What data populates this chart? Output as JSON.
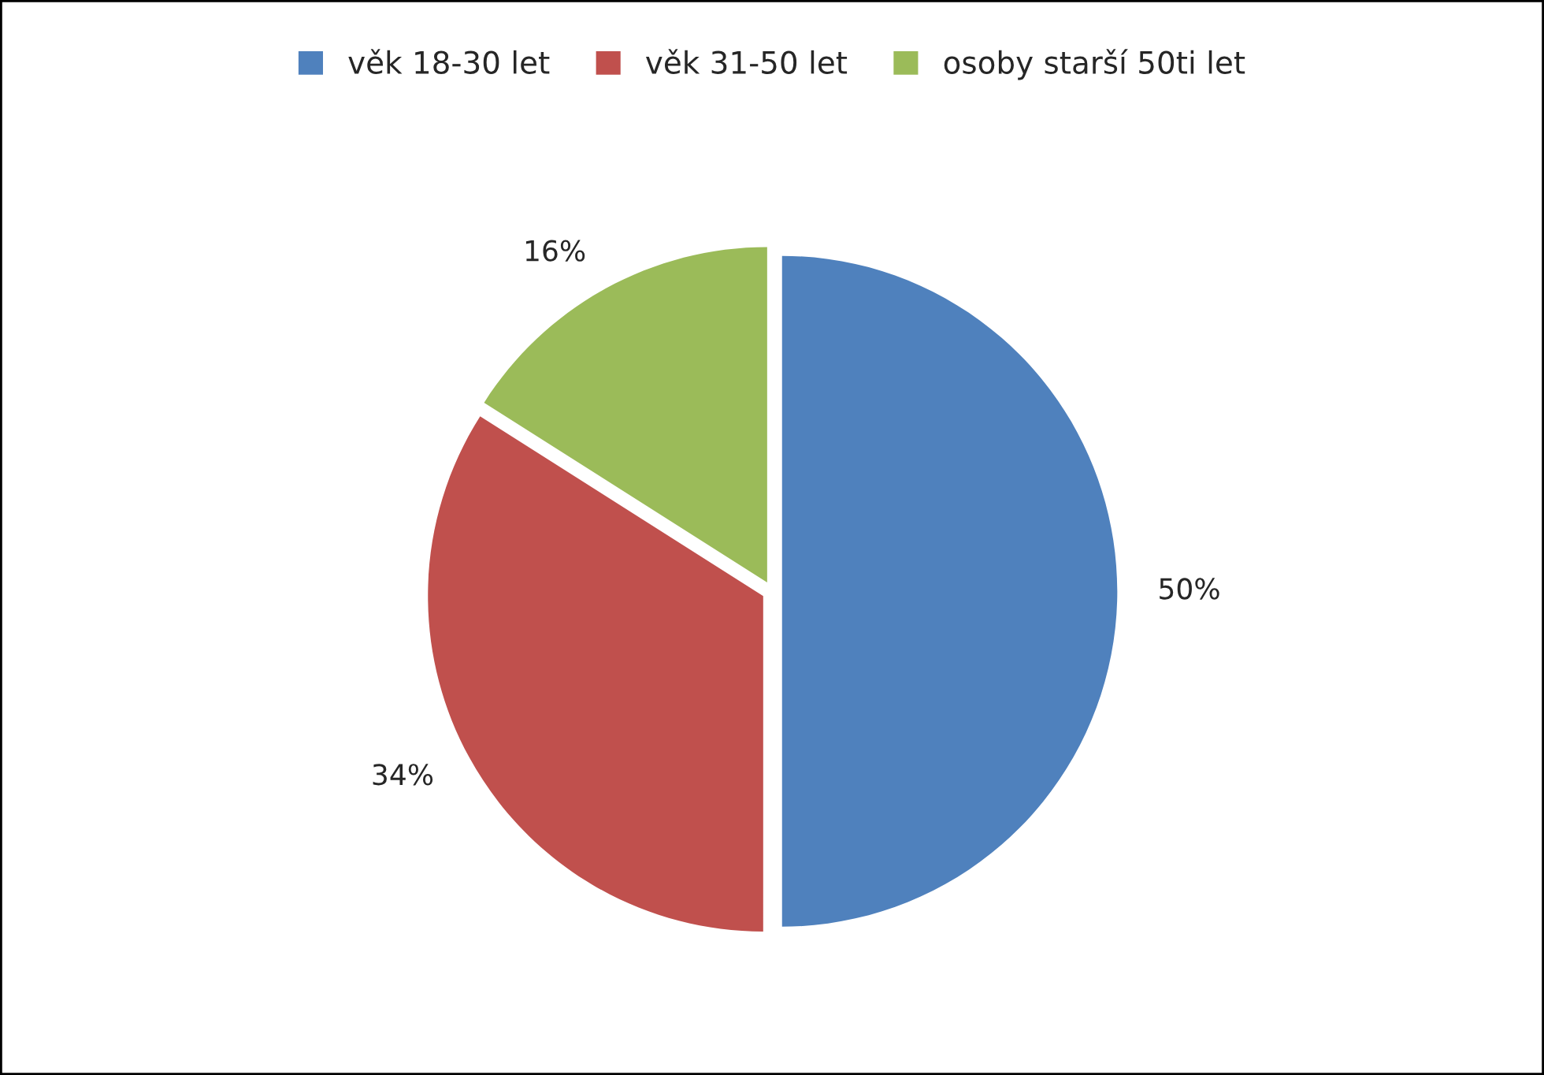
{
  "chart_data": {
    "type": "pie",
    "categories": [
      "věk 18-30 let",
      "věk 31-50 let",
      "osoby starší 50ti let"
    ],
    "values": [
      50,
      34,
      16
    ],
    "value_labels": [
      "50%",
      "34%",
      "16%"
    ],
    "colors": [
      "#4f81bd",
      "#c0504d",
      "#9bbb59"
    ],
    "legend": "top"
  }
}
